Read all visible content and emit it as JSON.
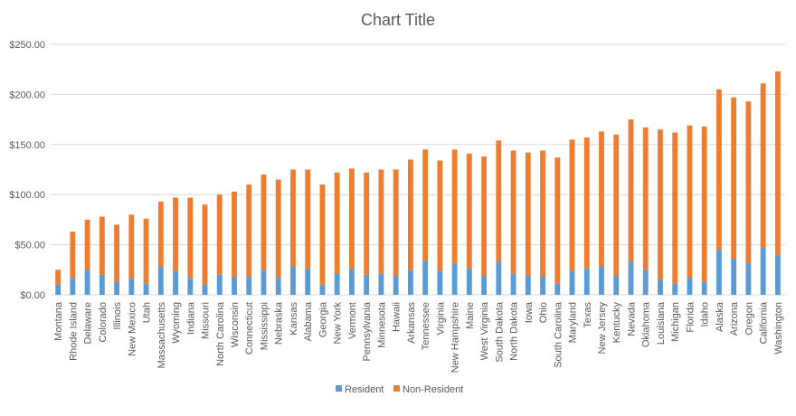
{
  "chart_data": {
    "type": "bar",
    "stacked": true,
    "title": "Chart Title",
    "xlabel": "",
    "ylabel": "",
    "ylim": [
      0,
      250
    ],
    "y_ticks": [
      "$0.00",
      "$50.00",
      "$100.00",
      "$150.00",
      "$200.00",
      "$250.00"
    ],
    "y_tick_values": [
      0,
      50,
      100,
      150,
      200,
      250
    ],
    "legend_position": "bottom",
    "grid": true,
    "colors": {
      "Resident": "#5b9bd5",
      "Non-Resident": "#ed7d31",
      "grid": "#d9d9d9",
      "text": "#595959"
    },
    "categories": [
      "Montana",
      "Rhode Island",
      "Delaware",
      "Colorado",
      "Illinois",
      "New Mexico",
      "Utah",
      "Massachusetts",
      "Wyoming",
      "Indiana",
      "Missouri",
      "North Carolina",
      "Wisconsin",
      "Connecticut",
      "Mississippi",
      "Nebraska",
      "Kansas",
      "Alabama",
      "Georgia",
      "New York",
      "Vermont",
      "Pennsylvania",
      "Minnesota",
      "Hawaii",
      "Arkansas",
      "Tennessee",
      "Virginia",
      "New Hampshire",
      "Maine",
      "West Virginia",
      "South Dakota",
      "North Dakota",
      "Iowa",
      "Ohio",
      "South Carolina",
      "Maryland",
      "Texas",
      "New Jersey",
      "Kentucky",
      "Nevada",
      "Oklahoma",
      "Louisiana",
      "Michigan",
      "Florida",
      "Idaho",
      "Alaska",
      "Arizona",
      "Oregon",
      "California",
      "Washington"
    ],
    "series": [
      {
        "name": "Resident",
        "values": [
          10,
          17,
          25,
          20,
          13,
          16,
          11,
          28,
          24,
          17,
          10,
          20,
          18,
          18,
          25,
          17,
          28,
          26,
          10,
          21,
          26,
          20,
          21,
          19,
          25,
          34,
          24,
          31,
          26,
          19,
          33,
          21,
          19,
          18,
          11,
          24,
          26,
          28,
          19,
          33,
          25,
          15,
          11,
          17,
          13,
          45,
          36,
          32,
          47,
          40
        ]
      },
      {
        "name": "Non-Resident",
        "values": [
          15,
          46,
          50,
          58,
          57,
          64,
          65,
          65,
          73,
          80,
          80,
          80,
          85,
          92,
          95,
          98,
          97,
          99,
          100,
          101,
          100,
          102,
          104,
          106,
          110,
          111,
          110,
          114,
          115,
          119,
          121,
          123,
          123,
          126,
          126,
          131,
          131,
          135,
          141,
          142,
          142,
          150,
          151,
          152,
          155,
          160,
          161,
          161,
          164,
          183
        ]
      }
    ]
  }
}
